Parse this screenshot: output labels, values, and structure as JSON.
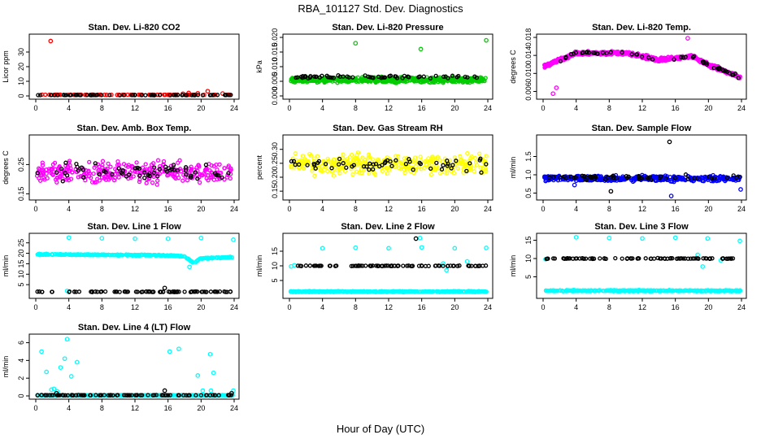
{
  "page_title": "RBA_101127  Std. Dev. Diagnostics",
  "x_axis_label": "Hour of Day (UTC)",
  "colors": {
    "red": "#ff0000",
    "black": "#000000",
    "green": "#00cc00",
    "magenta": "#ff00ff",
    "yellow": "#ffff00",
    "blue": "#0000ff",
    "cyan": "#00ffff"
  },
  "chart_data": [
    {
      "type": "scatter",
      "title": "Stan. Dev. Li-820 CO2",
      "xlabel": "",
      "ylabel": "Licor ppm",
      "xlim": [
        0,
        24
      ],
      "ylim": [
        0,
        40
      ],
      "xticks": [
        0,
        4,
        8,
        12,
        16,
        20,
        24
      ],
      "yticks": [
        0,
        10,
        20,
        30
      ],
      "grid": false,
      "series": [
        {
          "color": "#ff0000",
          "base": 0.8,
          "spread": 0.3,
          "count": 90,
          "outliers": [
            [
              1.8,
              37.5
            ],
            [
              17.8,
              1.5
            ],
            [
              18.5,
              2.0
            ],
            [
              19.6,
              1.8
            ],
            [
              20.8,
              3.2
            ],
            [
              22.6,
              1.6
            ]
          ]
        },
        {
          "color": "#000000",
          "base": 0.6,
          "spread": 0.3,
          "count": 70,
          "outliers": []
        }
      ]
    },
    {
      "type": "scatter",
      "title": "Stan. Dev. Li-820 Pressure",
      "xlabel": "",
      "ylabel": "kPa",
      "xlim": [
        0,
        24
      ],
      "ylim": [
        0,
        0.02
      ],
      "xticks": [
        0,
        4,
        8,
        12,
        16,
        20,
        24
      ],
      "yticks": [
        0.0,
        0.005,
        0.01,
        0.015,
        0.02
      ],
      "ytick_labels": [
        "0.000",
        "0.005",
        "0.010",
        "0.015",
        "0.020"
      ],
      "grid": false,
      "series": [
        {
          "color": "#00cc00",
          "base": 0.0055,
          "spread": 0.0025,
          "count": 600,
          "outliers": [
            [
              8.0,
              0.018
            ],
            [
              15.9,
              0.016
            ],
            [
              23.8,
              0.019
            ]
          ]
        },
        {
          "color": "#000000",
          "base": 0.0065,
          "spread": 0.0015,
          "count": 60,
          "outliers": []
        }
      ]
    },
    {
      "type": "scatter",
      "title": "Stan. Dev. Li-820 Temp.",
      "xlabel": "",
      "ylabel": "degrees C",
      "xlim": [
        0,
        24
      ],
      "ylim": [
        0.005,
        0.018
      ],
      "xticks": [
        0,
        4,
        8,
        12,
        16,
        20,
        24
      ],
      "yticks": [
        0.006,
        0.01,
        0.014,
        0.018
      ],
      "ytick_labels": [
        "0.006",
        "0.010",
        "0.014",
        "0.018"
      ],
      "grid": false,
      "series": [
        {
          "color": "#ff00ff",
          "base": 0.0135,
          "spread": 0.0012,
          "count": 600,
          "trend": [
            [
              0,
              0.0115
            ],
            [
              4,
              0.0145
            ],
            [
              10,
              0.0145
            ],
            [
              14,
              0.013
            ],
            [
              18,
              0.0138
            ],
            [
              20,
              0.012
            ],
            [
              24,
              0.009
            ]
          ],
          "outliers": [
            [
              1.2,
              0.0055
            ],
            [
              1.6,
              0.0068
            ],
            [
              17.5,
              0.0178
            ]
          ]
        },
        {
          "color": "#000000",
          "base": 0.0135,
          "spread": 0.001,
          "count": 55,
          "trend": [
            [
              0,
              0.0115
            ],
            [
              4,
              0.0145
            ],
            [
              10,
              0.0145
            ],
            [
              14,
              0.013
            ],
            [
              18,
              0.0138
            ],
            [
              20,
              0.012
            ],
            [
              24,
              0.009
            ]
          ],
          "outliers": []
        }
      ]
    },
    {
      "type": "scatter",
      "title": "Stan. Dev. Amb. Box Temp.",
      "xlabel": "",
      "ylabel": "degrees C",
      "xlim": [
        0,
        24
      ],
      "ylim": [
        0.14,
        0.34
      ],
      "xticks": [
        0,
        4,
        8,
        12,
        16,
        20,
        24
      ],
      "yticks": [
        0.15,
        0.25
      ],
      "ytick_labels": [
        "0.15",
        "0.25"
      ],
      "grid": false,
      "series": [
        {
          "color": "#ff00ff",
          "base": 0.225,
          "spread": 0.1,
          "count": 320,
          "outliers": []
        },
        {
          "color": "#000000",
          "base": 0.225,
          "spread": 0.09,
          "count": 60,
          "outliers": []
        }
      ]
    },
    {
      "type": "scatter",
      "title": "Stan. Dev. Gas Stream RH",
      "xlabel": "",
      "ylabel": "percent",
      "xlim": [
        0,
        24
      ],
      "ylim": [
        0.13,
        0.34
      ],
      "xticks": [
        0,
        4,
        8,
        12,
        16,
        20,
        24
      ],
      "yticks": [
        0.15,
        0.2,
        0.25,
        0.3
      ],
      "ytick_labels": [
        "0.15",
        "0.20",
        "0.25",
        "0.30"
      ],
      "grid": false,
      "series": [
        {
          "color": "#ffff00",
          "base": 0.245,
          "spread": 0.1,
          "count": 320,
          "outliers": []
        },
        {
          "color": "#000000",
          "base": 0.245,
          "spread": 0.08,
          "count": 55,
          "outliers": []
        }
      ]
    },
    {
      "type": "scatter",
      "title": "Stan. Dev. Sample Flow",
      "xlabel": "",
      "ylabel": "ml/min",
      "xlim": [
        0,
        24
      ],
      "ylim": [
        0.4,
        2.0
      ],
      "xticks": [
        0,
        4,
        8,
        12,
        16,
        20,
        24
      ],
      "yticks": [
        0.5,
        1.0,
        1.5
      ],
      "ytick_labels": [
        "0.5",
        "1.0",
        "1.5"
      ],
      "grid": false,
      "series": [
        {
          "color": "#0000ff",
          "base": 0.9,
          "spread": 0.22,
          "count": 450,
          "outliers": [
            [
              15.5,
              0.42
            ],
            [
              23.9,
              0.6
            ],
            [
              3.8,
              0.72
            ]
          ]
        },
        {
          "color": "#000000",
          "base": 0.92,
          "spread": 0.2,
          "count": 55,
          "outliers": [
            [
              15.3,
              1.9
            ],
            [
              8.2,
              0.55
            ]
          ]
        }
      ]
    },
    {
      "type": "scatter",
      "title": "Stan. Dev. Line 1 Flow",
      "xlabel": "",
      "ylabel": "ml/min",
      "xlim": [
        0,
        24
      ],
      "ylim": [
        0,
        28
      ],
      "xticks": [
        0,
        4,
        8,
        12,
        16,
        20,
        24
      ],
      "yticks": [
        5,
        10,
        15,
        20,
        25
      ],
      "grid": false,
      "series": [
        {
          "color": "#00ffff",
          "base": 19.0,
          "spread": 0.7,
          "count": 400,
          "trend": [
            [
              0,
              19.5
            ],
            [
              16,
              19.0
            ],
            [
              18,
              18.6
            ],
            [
              19.2,
              15.0
            ],
            [
              19.8,
              17.5
            ],
            [
              24,
              18.2
            ]
          ],
          "outliers": [
            [
              4.0,
              27.5
            ],
            [
              8.0,
              27.2
            ],
            [
              12.0,
              27.0
            ],
            [
              16.0,
              27.0
            ],
            [
              20.0,
              27.3
            ],
            [
              23.9,
              26.5
            ],
            [
              3.8,
              2.0
            ],
            [
              18.6,
              13.5
            ]
          ]
        },
        {
          "color": "#000000",
          "base": 1.6,
          "spread": 0.4,
          "count": 80,
          "outliers": [
            [
              15.6,
              3.4
            ]
          ]
        }
      ]
    },
    {
      "type": "scatter",
      "title": "Stan. Dev. Line 2 Flow",
      "xlabel": "",
      "ylabel": "ml/min",
      "xlim": [
        0,
        24
      ],
      "ylim": [
        0,
        20
      ],
      "xticks": [
        0,
        4,
        8,
        12,
        16,
        20,
        24
      ],
      "yticks": [
        5,
        10,
        15
      ],
      "grid": false,
      "series": [
        {
          "color": "#00ffff",
          "base": 1.2,
          "spread": 0.5,
          "count": 400,
          "outliers": [
            [
              4.0,
              16.0
            ],
            [
              8.0,
              16.2
            ],
            [
              12.0,
              16.0
            ],
            [
              16.0,
              16.3
            ],
            [
              20.0,
              16.0
            ],
            [
              23.8,
              16.1
            ],
            [
              0.2,
              9.8
            ],
            [
              0.6,
              10.2
            ],
            [
              19.0,
              8.5
            ],
            [
              18.6,
              10.8
            ],
            [
              21.5,
              11.5
            ],
            [
              15.8,
              19.5
            ]
          ]
        },
        {
          "color": "#000000",
          "base": 10.0,
          "spread": 0.3,
          "count": 85,
          "outliers": [
            [
              15.3,
              19.3
            ]
          ]
        }
      ]
    },
    {
      "type": "scatter",
      "title": "Stan. Dev. Line 3 Flow",
      "xlabel": "",
      "ylabel": "ml/min",
      "xlim": [
        0,
        24
      ],
      "ylim": [
        0,
        16
      ],
      "xticks": [
        0,
        4,
        8,
        12,
        16,
        20,
        24
      ],
      "yticks": [
        5,
        10,
        15
      ],
      "grid": false,
      "series": [
        {
          "color": "#00ffff",
          "base": 1.2,
          "spread": 0.5,
          "count": 400,
          "outliers": [
            [
              4.0,
              15.8
            ],
            [
              8.0,
              15.6
            ],
            [
              12.0,
              15.5
            ],
            [
              16.0,
              15.7
            ],
            [
              19.9,
              15.5
            ],
            [
              23.8,
              14.8
            ],
            [
              0.3,
              9.8
            ],
            [
              19.3,
              7.8
            ],
            [
              21.5,
              9.5
            ],
            [
              18.7,
              11.0
            ]
          ]
        },
        {
          "color": "#000000",
          "base": 10.0,
          "spread": 0.3,
          "count": 85,
          "outliers": []
        }
      ]
    },
    {
      "type": "scatter",
      "title": "Stan. Dev. Line 4 (LT) Flow",
      "xlabel": "",
      "ylabel": "ml/min",
      "xlim": [
        0,
        24
      ],
      "ylim": [
        0,
        6.6
      ],
      "xticks": [
        0,
        4,
        8,
        12,
        16,
        20,
        24
      ],
      "yticks": [
        0,
        2,
        4,
        6
      ],
      "grid": false,
      "series": [
        {
          "color": "#00ffff",
          "base": 0.08,
          "spread": 0.08,
          "count": 400,
          "outliers": [
            [
              0.7,
              5.0
            ],
            [
              1.3,
              2.7
            ],
            [
              1.9,
              0.7
            ],
            [
              2.2,
              0.8
            ],
            [
              2.6,
              0.5
            ],
            [
              3.0,
              3.2
            ],
            [
              3.5,
              4.2
            ],
            [
              3.8,
              6.4
            ],
            [
              4.3,
              2.2
            ],
            [
              5.0,
              3.8
            ],
            [
              16.2,
              5.0
            ],
            [
              17.3,
              5.3
            ],
            [
              19.6,
              2.3
            ],
            [
              20.2,
              0.6
            ],
            [
              21.1,
              4.7
            ],
            [
              21.5,
              2.6
            ],
            [
              21.2,
              0.6
            ],
            [
              23.9,
              0.6
            ]
          ]
        },
        {
          "color": "#000000",
          "base": 0.08,
          "spread": 0.06,
          "count": 90,
          "outliers": [
            [
              2.5,
              0.3
            ],
            [
              15.6,
              0.6
            ],
            [
              23.7,
              0.3
            ]
          ]
        }
      ]
    }
  ]
}
